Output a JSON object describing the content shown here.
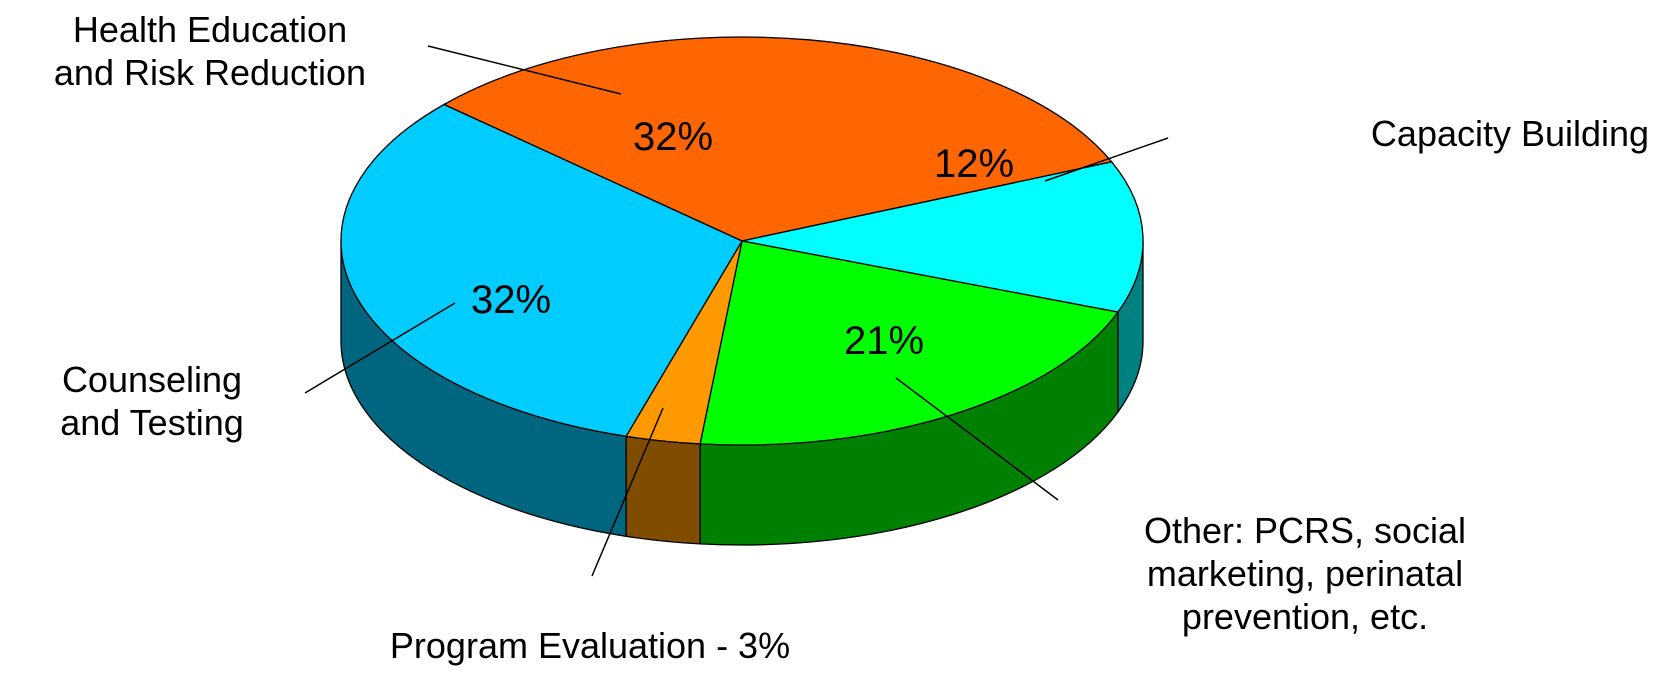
{
  "chart_data": {
    "type": "pie",
    "variant": "3d",
    "slices": [
      {
        "label": "Health Education and Risk Reduction",
        "label_lines": [
          "Health Education",
          "and Risk Reduction"
        ],
        "value": 32,
        "value_label": "32%",
        "color": "#FF6600",
        "side_color": "#A04000"
      },
      {
        "label": "Capacity Building",
        "label_lines": [
          "Capacity Building"
        ],
        "value": 12,
        "value_label": "12%",
        "color": "#00FFFF",
        "side_color": "#008080"
      },
      {
        "label": "Other: PCRS, social marketing, perinatal prevention, etc.",
        "label_lines": [
          "Other: PCRS, social",
          "marketing, perinatal",
          "prevention, etc."
        ],
        "value": 21,
        "value_label": "21%",
        "color": "#00FF00",
        "side_color": "#008000"
      },
      {
        "label": "Program Evaluation - 3%",
        "label_lines": [
          "Program Evaluation - 3%"
        ],
        "value": 3,
        "value_label": "",
        "color": "#FF9900",
        "side_color": "#7F4C00"
      },
      {
        "label": "Counseling and Testing",
        "label_lines": [
          "Counseling",
          "and Testing"
        ],
        "value": 32,
        "value_label": "32%",
        "color": "#00CCFF",
        "side_color": "#006680"
      }
    ]
  }
}
